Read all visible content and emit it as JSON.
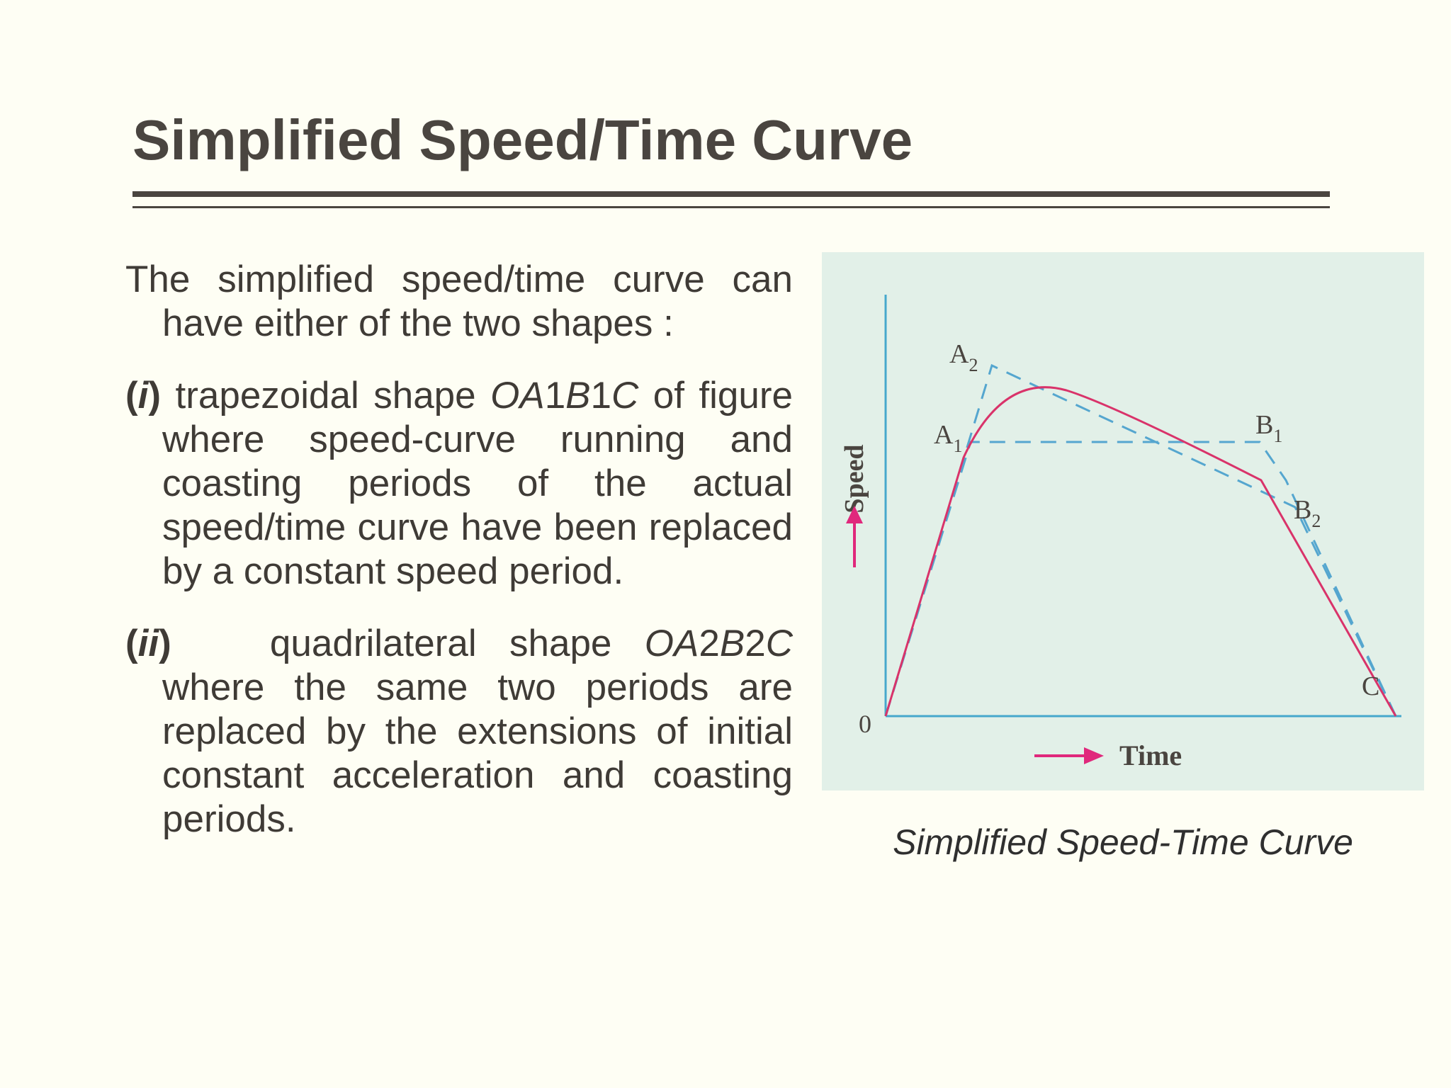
{
  "slide": {
    "title": "Simplified Speed/Time Curve"
  },
  "body": {
    "intro": "The simplified speed/time curve can have either of the two shapes :",
    "item1": {
      "open_paren": "(",
      "numeral": "i",
      "close_paren": ")",
      "lead": "trapezoidal shape",
      "shape_label": [
        "O",
        "A",
        "1",
        "B",
        "1",
        "C"
      ],
      "rest": "of figure where speed-curve running and coasting periods of the actual speed/time curve have been replaced by a constant speed period."
    },
    "item2": {
      "open_paren": "(",
      "numeral": "ii",
      "close_paren": ")",
      "lead": "quadrilateral shape",
      "shape_label": [
        "O",
        "A",
        "2",
        "B",
        "2",
        "C"
      ],
      "rest": "where the same two periods are replaced by the extensions of initial constant acceleration and coasting periods."
    }
  },
  "figure": {
    "y_axis_label": "Speed",
    "x_axis_label": "Time",
    "origin_label": "0",
    "points": {
      "a1": {
        "letter": "A",
        "sub": "1"
      },
      "a2": {
        "letter": "A",
        "sub": "2"
      },
      "b1": {
        "letter": "B",
        "sub": "1"
      },
      "b2": {
        "letter": "B",
        "sub": "2"
      },
      "c": {
        "letter": "C"
      }
    },
    "caption": "Simplified Speed-Time Curve",
    "colors": {
      "panel_background": "#e2f0e8",
      "axes": "#46a8cc",
      "actual_curve": "#d9336a",
      "simplified_lines": "#55a6cf",
      "arrows": "#e0287c",
      "labels": "#4a4540"
    }
  }
}
